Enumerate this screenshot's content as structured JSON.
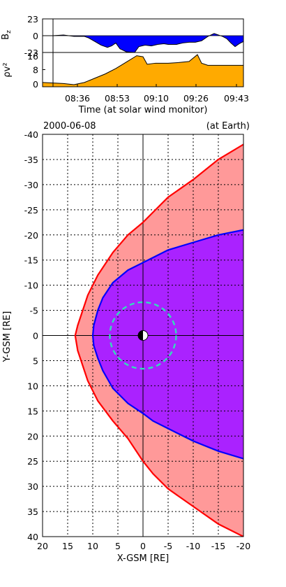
{
  "chart_data": [
    {
      "type": "area",
      "panel": "bz",
      "ylabel": "B",
      "ylabel_sub": "z",
      "ylim": [
        -23,
        23
      ],
      "yticks": [
        "23",
        "0",
        "-23"
      ],
      "fill_color": "#0000ff",
      "times": [
        "08:36",
        "08:53",
        "09:10",
        "09:26",
        "09:43"
      ],
      "x": [
        0,
        5,
        10,
        15,
        20,
        22,
        25,
        28,
        31,
        33,
        35,
        37,
        40,
        44,
        46,
        49,
        52,
        55,
        58,
        60,
        62,
        64,
        67,
        70,
        73,
        76,
        79,
        82,
        84,
        86,
        88,
        90,
        92,
        94,
        96
      ],
      "values": [
        0,
        0,
        1,
        -1,
        -1,
        -3,
        -8,
        -13,
        -16,
        -14,
        -10,
        -18,
        -22,
        -23,
        -15,
        -13,
        -14,
        -12,
        -11,
        -12,
        -12,
        -12,
        -10,
        -9,
        -9,
        -7,
        -1,
        3,
        1,
        -1,
        -4,
        -10,
        -15,
        -11,
        -8
      ]
    },
    {
      "type": "area",
      "panel": "pressure",
      "ylabel": "ρv²",
      "ylim": [
        0,
        16
      ],
      "yticks": [
        "16",
        "8",
        "0"
      ],
      "fill_color": "#ffaa00",
      "xlabel": "Time (at solar wind monitor)",
      "x": [
        0,
        10,
        15,
        20,
        25,
        30,
        35,
        40,
        45,
        48,
        50,
        54,
        60,
        65,
        70,
        74,
        76,
        79,
        82,
        86,
        90,
        96
      ],
      "values": [
        2,
        1.5,
        1,
        2,
        4,
        6,
        8.5,
        11.5,
        14.5,
        14,
        10.5,
        11,
        11,
        11.3,
        11.8,
        15,
        11,
        10,
        10,
        10,
        10,
        10
      ]
    },
    {
      "type": "area",
      "panel": "magnetosphere",
      "date": "2000-06-08",
      "location": "(at Earth)",
      "xlabel": "X-GSM [RE]",
      "ylabel": "Y-GSM [RE]",
      "xlim": [
        20,
        -20
      ],
      "ylim": [
        -40,
        40
      ],
      "xticks": [
        "20",
        "15",
        "10",
        "5",
        "0",
        "-5",
        "-10",
        "-15",
        "-20"
      ],
      "yticks": [
        "-40",
        "-35",
        "-30",
        "-25",
        "-20",
        "-15",
        "-10",
        "-5",
        "0",
        "5",
        "10",
        "15",
        "20",
        "25",
        "30",
        "35",
        "40"
      ],
      "grid": true,
      "series": [
        {
          "role": "bow-shock",
          "color": "#ff0000",
          "fill": "#ff9999",
          "x": [
            -20,
            -15,
            -10,
            -5,
            -2,
            0,
            3,
            6,
            9,
            11,
            12,
            13,
            13.5,
            13,
            12,
            11,
            9,
            6,
            3,
            0,
            -2,
            -5,
            -10,
            -15,
            -20
          ],
          "y": [
            -38,
            -35,
            -31,
            -27.5,
            -24.5,
            -22.5,
            -20,
            -16.5,
            -12,
            -8,
            -5,
            -2,
            0,
            3,
            6,
            9,
            13,
            17,
            20.5,
            25,
            27.5,
            30.5,
            34,
            37.5,
            40
          ]
        },
        {
          "role": "magnetopause",
          "color": "#0000ff",
          "fill": "#aa22ff",
          "x": [
            -20,
            -15,
            -10,
            -5,
            -2,
            0,
            3,
            6,
            8,
            9,
            9.8,
            10,
            9.8,
            9,
            8,
            6,
            3,
            0,
            -2,
            -5,
            -10,
            -15,
            -20
          ],
          "y": [
            -21,
            -20,
            -18.5,
            -17,
            -15.5,
            -14.5,
            -13,
            -10.5,
            -7.5,
            -5,
            -2,
            0,
            2,
            4.5,
            7,
            10.5,
            13.5,
            15.5,
            17,
            18.5,
            21,
            23,
            24.5
          ]
        },
        {
          "role": "geosynchronous-orbit",
          "color": "#33ddbb",
          "radius": 6.6
        }
      ]
    }
  ]
}
